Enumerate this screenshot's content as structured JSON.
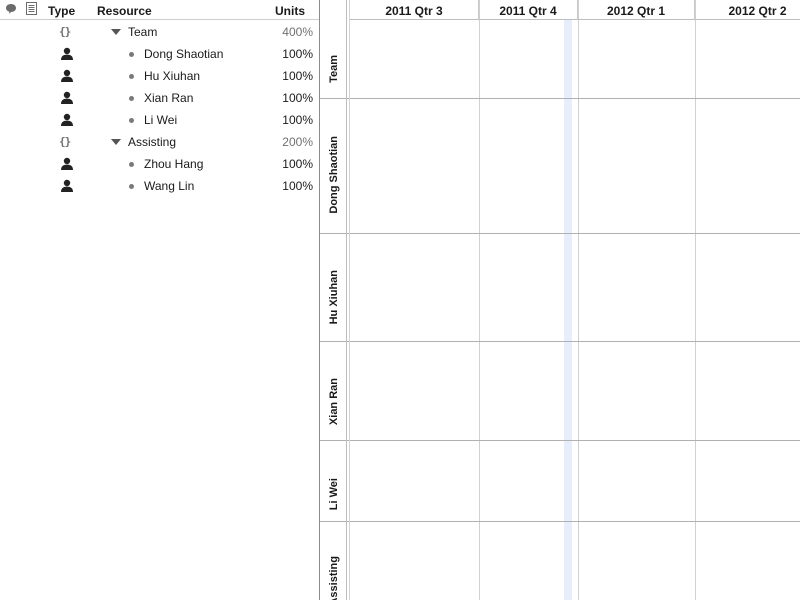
{
  "left_header": {
    "note_icon": "speech-bubble-icon",
    "doc_icon": "document-icon",
    "type": "Type",
    "resource": "Resource",
    "units": "Units"
  },
  "rows": [
    {
      "kind": "group",
      "type_icon": "group-braces-icon",
      "type_glyph": "{}",
      "label": "Team",
      "units": "400%"
    },
    {
      "kind": "member",
      "type_icon": "person-icon",
      "label": "Dong Shaotian",
      "units": "100%"
    },
    {
      "kind": "member",
      "type_icon": "person-icon",
      "label": "Hu Xiuhan",
      "units": "100%"
    },
    {
      "kind": "member",
      "type_icon": "person-icon",
      "label": "Xian Ran",
      "units": "100%"
    },
    {
      "kind": "member",
      "type_icon": "person-icon",
      "label": "Li Wei",
      "units": "100%"
    },
    {
      "kind": "group",
      "type_icon": "group-braces-icon",
      "type_glyph": "{}",
      "label": "Assisting",
      "units": "200%"
    },
    {
      "kind": "member",
      "type_icon": "person-icon",
      "label": "Zhou Hang",
      "units": "100%"
    },
    {
      "kind": "member",
      "type_icon": "person-icon",
      "label": "Wang Lin",
      "units": "100%"
    }
  ],
  "timeline": {
    "quarters": [
      "2011 Qtr 3",
      "2011 Qtr 4",
      "2012 Qtr 1",
      "2012 Qtr 2"
    ],
    "row_labels": [
      "Team",
      "Dong Shaotian",
      "Hu Xiuhan",
      "Xian Ran",
      "Li Wei",
      "Assisting"
    ]
  },
  "colors": {
    "highlight": "#e6eefb",
    "grid": "#d0d0d0"
  }
}
